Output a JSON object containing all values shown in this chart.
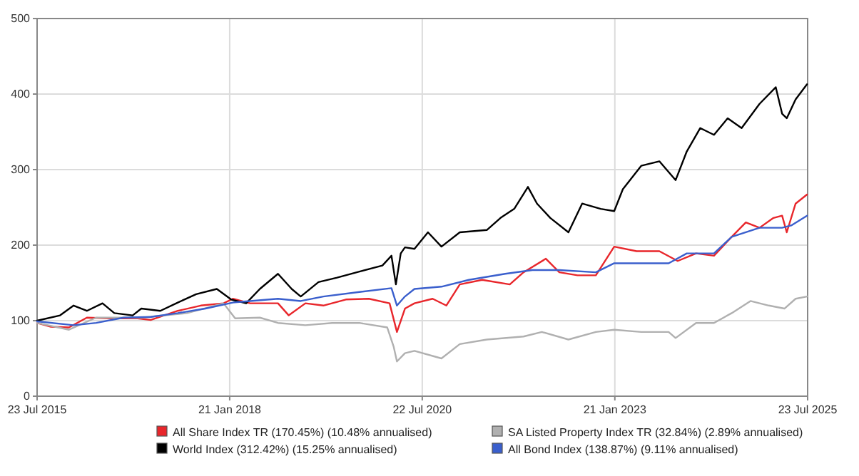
{
  "chart_data": {
    "type": "line",
    "xlim": [
      "2015-07-23",
      "2025-07-23"
    ],
    "xticks": [
      {
        "value": "2015-07-23",
        "label": "23 Jul 2015"
      },
      {
        "value": "2018-01-21",
        "label": "21 Jan 2018"
      },
      {
        "value": "2020-07-22",
        "label": "22 Jul 2020"
      },
      {
        "value": "2023-01-21",
        "label": "21 Jan 2023"
      },
      {
        "value": "2025-07-23",
        "label": "23 Jul 2025"
      }
    ],
    "ylim": [
      0,
      500
    ],
    "yticks": [
      0,
      100,
      200,
      300,
      400,
      500
    ],
    "grid": true,
    "legend": "bottom",
    "marker": "none",
    "line_style": "solid",
    "series": [
      {
        "name": "All Share Index TR (170.45%) (10.48% annualised)",
        "color": "#e8262b",
        "x": [
          "2015-07-23",
          "2015-09-26",
          "2015-12-21",
          "2016-03-15",
          "2016-07-02",
          "2016-11-10",
          "2017-01-13",
          "2017-05-20",
          "2017-09-06",
          "2017-12-23",
          "2018-02-05",
          "2018-04-28",
          "2018-09-07",
          "2018-10-28",
          "2019-01-15",
          "2019-04-10",
          "2019-07-26",
          "2019-11-12",
          "2020-02-18",
          "2020-03-24",
          "2020-05-01",
          "2020-06-15",
          "2020-09-09",
          "2020-11-13",
          "2021-01-16",
          "2021-05-02",
          "2021-09-10",
          "2021-11-14",
          "2022-02-28",
          "2022-05-03",
          "2022-07-28",
          "2022-10-23",
          "2023-01-18",
          "2023-05-04",
          "2023-08-20",
          "2023-11-15",
          "2024-02-10",
          "2024-05-05",
          "2024-07-28",
          "2024-10-03",
          "2024-12-07",
          "2025-02-11",
          "2025-03-24",
          "2025-04-15",
          "2025-05-27",
          "2025-07-20"
        ],
        "values": [
          97,
          92,
          91,
          104,
          103,
          103,
          101,
          113,
          120,
          123,
          129,
          123,
          123,
          107,
          123,
          120,
          128,
          129,
          123,
          85,
          116,
          123,
          129,
          120,
          148,
          154,
          148,
          164,
          182,
          164,
          160,
          160,
          198,
          192,
          192,
          179,
          189,
          186,
          211,
          230,
          223,
          236,
          239,
          217,
          255,
          267
        ]
      },
      {
        "name": "SA Listed Property Index TR (32.84%) (2.89% annualised)",
        "color": "#b0b0b0",
        "x": [
          "2015-07-23",
          "2015-12-21",
          "2016-04-28",
          "2016-11-28",
          "2017-07-03",
          "2017-12-23",
          "2018-02-16",
          "2018-06-13",
          "2018-09-07",
          "2019-01-15",
          "2019-05-22",
          "2019-09-28",
          "2020-02-07",
          "2020-03-08",
          "2020-03-24",
          "2020-05-01",
          "2020-06-15",
          "2020-10-21",
          "2021-01-16",
          "2021-05-24",
          "2021-11-14",
          "2022-02-09",
          "2022-06-15",
          "2022-10-23",
          "2023-01-18",
          "2023-05-26",
          "2023-10-03",
          "2023-11-05",
          "2024-02-10",
          "2024-05-05",
          "2024-07-28",
          "2024-10-25",
          "2025-01-20",
          "2025-04-04",
          "2025-05-27",
          "2025-07-20"
        ],
        "values": [
          97,
          88,
          104,
          104,
          110,
          123,
          103,
          104,
          97,
          94,
          97,
          97,
          91,
          66,
          46,
          57,
          60,
          50,
          69,
          75,
          79,
          85,
          75,
          85,
          88,
          85,
          85,
          77,
          97,
          97,
          110,
          126,
          120,
          116,
          129,
          132
        ]
      },
      {
        "name": "World Index (312.42%) (15.25% annualised)",
        "color": "#000000",
        "x": [
          "2015-07-23",
          "2015-11-09",
          "2016-01-12",
          "2016-03-15",
          "2016-05-28",
          "2016-07-23",
          "2016-10-18",
          "2016-11-28",
          "2017-02-26",
          "2017-05-20",
          "2017-08-15",
          "2017-11-21",
          "2018-01-28",
          "2018-04-09",
          "2018-06-13",
          "2018-09-07",
          "2018-11-11",
          "2018-12-24",
          "2019-03-18",
          "2019-06-14",
          "2019-09-28",
          "2020-01-15",
          "2020-02-27",
          "2020-03-19",
          "2020-04-11",
          "2020-05-01",
          "2020-06-15",
          "2020-08-18",
          "2020-10-21",
          "2021-01-16",
          "2021-05-24",
          "2021-07-28",
          "2021-10-01",
          "2021-12-05",
          "2022-01-17",
          "2022-03-21",
          "2022-06-15",
          "2022-08-19",
          "2022-11-15",
          "2023-01-18",
          "2023-02-28",
          "2023-05-26",
          "2023-08-20",
          "2023-11-05",
          "2023-12-28",
          "2024-03-01",
          "2024-05-05",
          "2024-07-09",
          "2024-09-13",
          "2024-12-07",
          "2025-02-22",
          "2025-03-24",
          "2025-04-15",
          "2025-05-27",
          "2025-07-20"
        ],
        "values": [
          100,
          107,
          120,
          113,
          123,
          110,
          107,
          116,
          113,
          124,
          135,
          142,
          128,
          123,
          142,
          162,
          142,
          132,
          151,
          157,
          165,
          173,
          186,
          148,
          189,
          197,
          195,
          217,
          198,
          217,
          220,
          236,
          248,
          277,
          255,
          236,
          217,
          255,
          248,
          245,
          274,
          305,
          311,
          286,
          324,
          355,
          346,
          368,
          355,
          387,
          409,
          374,
          368,
          393,
          413
        ]
      },
      {
        "name": "All Bond Index (138.87%) (9.11% annualised)",
        "color": "#3a5fcd",
        "x": [
          "2015-07-23",
          "2016-01-12",
          "2016-04-28",
          "2016-09-05",
          "2017-01-13",
          "2017-05-20",
          "2017-09-28",
          "2018-02-05",
          "2018-04-28",
          "2018-09-07",
          "2018-12-24",
          "2019-04-10",
          "2019-09-28",
          "2020-02-27",
          "2020-03-24",
          "2020-05-01",
          "2020-06-15",
          "2020-10-21",
          "2021-02-28",
          "2021-08-19",
          "2021-12-26",
          "2022-05-03",
          "2022-10-23",
          "2023-01-18",
          "2023-05-26",
          "2023-10-03",
          "2023-12-28",
          "2024-05-05",
          "2024-07-28",
          "2024-12-07",
          "2025-03-24",
          "2025-05-06",
          "2025-07-20"
        ],
        "values": [
          99,
          94,
          97,
          104,
          105,
          110,
          116,
          124,
          126,
          129,
          126,
          132,
          138,
          143,
          120,
          132,
          142,
          145,
          154,
          162,
          167,
          167,
          164,
          176,
          176,
          176,
          189,
          189,
          211,
          223,
          223,
          226,
          239
        ]
      }
    ]
  }
}
